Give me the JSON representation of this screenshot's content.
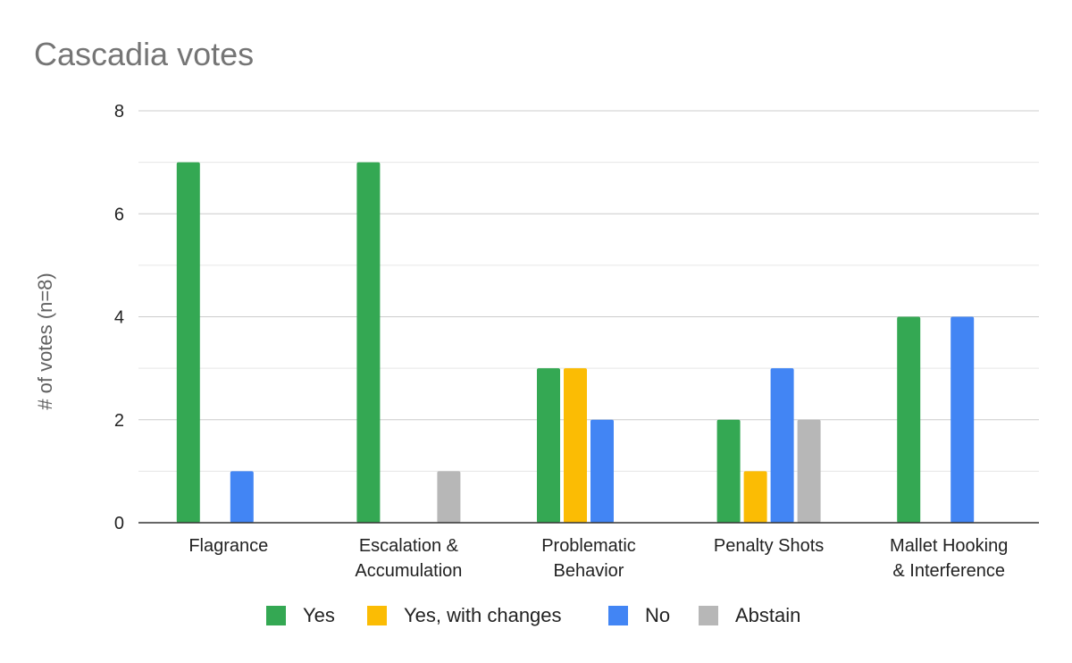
{
  "chart_data": {
    "type": "bar",
    "title": "Cascadia votes",
    "ylabel": "# of votes (n=8)",
    "xlabel": "",
    "ylim": [
      0,
      8
    ],
    "yticks": [
      0,
      2,
      4,
      6,
      8
    ],
    "grid": true,
    "legend_position": "bottom",
    "categories": [
      [
        "Flagrance"
      ],
      [
        "Escalation &",
        "Accumulation"
      ],
      [
        "Problematic",
        "Behavior"
      ],
      [
        "Penalty Shots"
      ],
      [
        "Mallet Hooking",
        "& Interference"
      ]
    ],
    "series": [
      {
        "name": "Yes",
        "color": "#34a853",
        "values": [
          7,
          7,
          3,
          2,
          4
        ]
      },
      {
        "name": "Yes, with changes",
        "color": "#fbbc04",
        "values": [
          0,
          0,
          3,
          1,
          0
        ]
      },
      {
        "name": "No",
        "color": "#4285f4",
        "values": [
          1,
          0,
          2,
          3,
          4
        ]
      },
      {
        "name": "Abstain",
        "color": "#b7b7b7",
        "values": [
          0,
          1,
          0,
          2,
          0
        ]
      }
    ]
  }
}
